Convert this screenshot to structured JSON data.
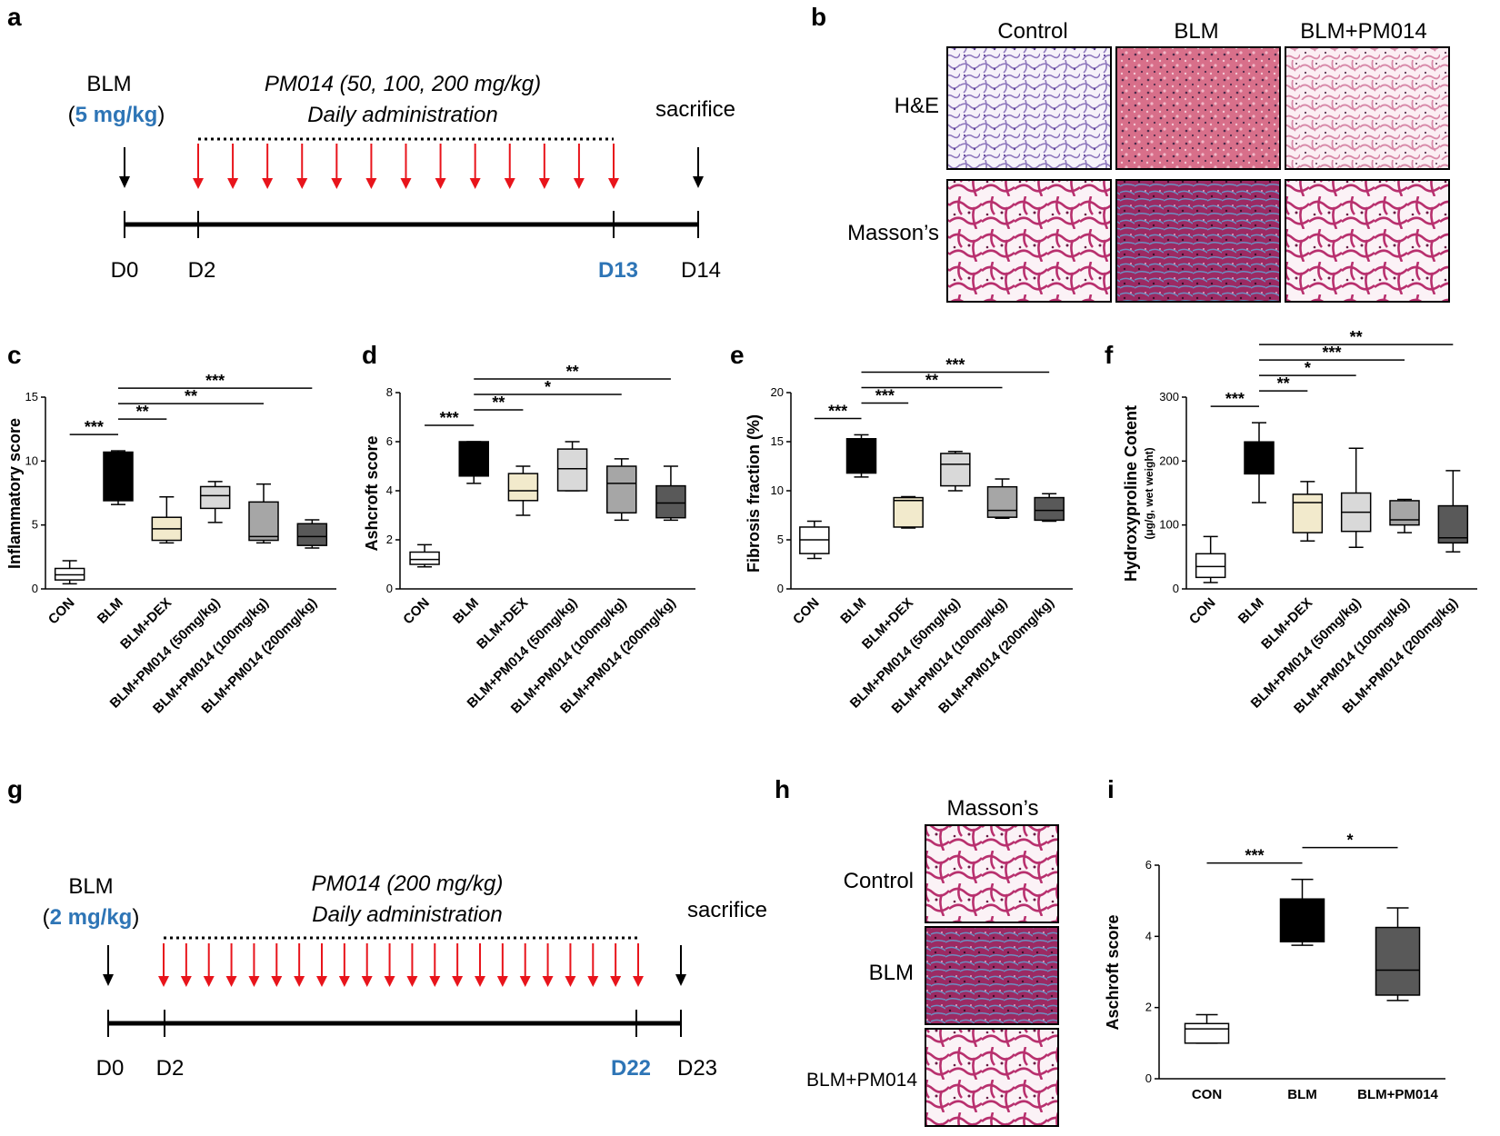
{
  "panels": {
    "a": {
      "letter": "a",
      "drug": "BLM",
      "dose_open": "(",
      "dose": "5 mg/kg",
      "dose_close": ")",
      "treatment": "PM014 (50, 100, 200 mg/kg)",
      "schedule": "Daily administration",
      "endpoint": "sacrifice",
      "days": [
        "D0",
        "D2",
        "D13",
        "D14"
      ]
    },
    "b": {
      "letter": "b",
      "columns": [
        "Control",
        "BLM",
        "BLM+PM014"
      ],
      "rows": [
        "H&E",
        "Masson’s"
      ]
    },
    "g": {
      "letter": "g",
      "drug": "BLM",
      "dose_open": "(",
      "dose": "2 mg/kg",
      "dose_close": ")",
      "treatment": "PM014 (200 mg/kg)",
      "schedule": "Daily administration",
      "endpoint": "sacrifice",
      "days": [
        "D0",
        "D2",
        "D22",
        "D23"
      ]
    },
    "h": {
      "letter": "h",
      "column": "Masson’s",
      "rows": [
        "Control",
        "BLM",
        "BLM+PM014"
      ]
    }
  },
  "colors": {
    "arrow_red": "#e8141b",
    "accent_blue": "#2e75b6",
    "he_control": "#c9b6de",
    "he_blm": "#d86f8a",
    "he_pm": "#e8aec6",
    "masson_tissue": "#b8306e",
    "masson_blue": "#5b8fc0"
  },
  "chart_data": [
    {
      "letter": "c",
      "type": "box",
      "ylabel": "Inflammatory score",
      "ylim": [
        0,
        15
      ],
      "yticks": [
        0,
        5,
        10,
        15
      ],
      "categories": [
        "CON",
        "BLM",
        "BLM+DEX",
        "BLM+PM014 (50mg/kg)",
        "BLM+PM014 (100mg/kg)",
        "BLM+PM014 (200mg/kg)"
      ],
      "boxes": [
        {
          "min": 0.4,
          "q1": 0.7,
          "median": 1.1,
          "q3": 1.6,
          "max": 2.2,
          "fill": "#ffffff"
        },
        {
          "min": 6.6,
          "q1": 6.9,
          "median": 10.5,
          "q3": 10.7,
          "max": 10.8,
          "fill": "#000000"
        },
        {
          "min": 3.6,
          "q1": 3.8,
          "median": 4.7,
          "q3": 5.6,
          "max": 7.2,
          "fill": "#f2eacc"
        },
        {
          "min": 5.2,
          "q1": 6.3,
          "median": 7.3,
          "q3": 8.0,
          "max": 8.4,
          "fill": "#d9d9d9"
        },
        {
          "min": 3.6,
          "q1": 3.8,
          "median": 4.1,
          "q3": 6.8,
          "max": 8.2,
          "fill": "#a6a6a6"
        },
        {
          "min": 3.2,
          "q1": 3.4,
          "median": 4.1,
          "q3": 5.1,
          "max": 5.4,
          "fill": "#595959"
        }
      ],
      "sig": [
        {
          "from": 0,
          "to": 1,
          "label": "***"
        },
        {
          "from": 1,
          "to": 2,
          "label": "**"
        },
        {
          "from": 1,
          "to": 4,
          "label": "**"
        },
        {
          "from": 1,
          "to": 5,
          "label": "***"
        }
      ]
    },
    {
      "letter": "d",
      "type": "box",
      "ylabel": "Ashcroft score",
      "ylim": [
        0,
        8
      ],
      "yticks": [
        0,
        2,
        4,
        6,
        8
      ],
      "categories": [
        "CON",
        "BLM",
        "BLM+DEX",
        "BLM+PM014 (50mg/kg)",
        "BLM+PM014 (100mg/kg)",
        "BLM+PM014 (200mg/kg)"
      ],
      "boxes": [
        {
          "min": 0.9,
          "q1": 1.0,
          "median": 1.2,
          "q3": 1.5,
          "max": 1.8,
          "fill": "#ffffff"
        },
        {
          "min": 4.3,
          "q1": 4.6,
          "median": 4.7,
          "q3": 6.0,
          "max": 6.0,
          "fill": "#000000"
        },
        {
          "min": 3.0,
          "q1": 3.6,
          "median": 4.0,
          "q3": 4.7,
          "max": 5.0,
          "fill": "#f2eacc"
        },
        {
          "min": 4.0,
          "q1": 4.0,
          "median": 4.9,
          "q3": 5.7,
          "max": 6.0,
          "fill": "#d9d9d9"
        },
        {
          "min": 2.8,
          "q1": 3.1,
          "median": 4.3,
          "q3": 5.0,
          "max": 5.3,
          "fill": "#a6a6a6"
        },
        {
          "min": 2.8,
          "q1": 2.9,
          "median": 3.5,
          "q3": 4.2,
          "max": 5.0,
          "fill": "#595959"
        }
      ],
      "sig": [
        {
          "from": 0,
          "to": 1,
          "label": "***"
        },
        {
          "from": 1,
          "to": 2,
          "label": "**"
        },
        {
          "from": 1,
          "to": 4,
          "label": "*"
        },
        {
          "from": 1,
          "to": 5,
          "label": "**"
        }
      ]
    },
    {
      "letter": "e",
      "type": "box",
      "ylabel": "Fibrosis fraction (%)",
      "ylim": [
        0,
        20
      ],
      "yticks": [
        0,
        5,
        10,
        15,
        20
      ],
      "categories": [
        "CON",
        "BLM",
        "BLM+DEX",
        "BLM+PM014 (50mg/kg)",
        "BLM+PM014 (100mg/kg)",
        "BLM+PM014 (200mg/kg)"
      ],
      "boxes": [
        {
          "min": 3.1,
          "q1": 3.6,
          "median": 5.0,
          "q3": 6.3,
          "max": 6.9,
          "fill": "#ffffff"
        },
        {
          "min": 11.4,
          "q1": 11.8,
          "median": 15.0,
          "q3": 15.3,
          "max": 15.7,
          "fill": "#000000"
        },
        {
          "min": 6.2,
          "q1": 6.3,
          "median": 9.0,
          "q3": 9.3,
          "max": 9.4,
          "fill": "#f2eacc"
        },
        {
          "min": 10.0,
          "q1": 10.5,
          "median": 12.7,
          "q3": 13.8,
          "max": 14.0,
          "fill": "#d9d9d9"
        },
        {
          "min": 7.2,
          "q1": 7.3,
          "median": 8.0,
          "q3": 10.4,
          "max": 11.2,
          "fill": "#a6a6a6"
        },
        {
          "min": 6.9,
          "q1": 7.0,
          "median": 8.0,
          "q3": 9.3,
          "max": 9.7,
          "fill": "#595959"
        }
      ],
      "sig": [
        {
          "from": 0,
          "to": 1,
          "label": "***"
        },
        {
          "from": 1,
          "to": 2,
          "label": "***"
        },
        {
          "from": 1,
          "to": 4,
          "label": "**"
        },
        {
          "from": 1,
          "to": 5,
          "label": "***"
        }
      ]
    },
    {
      "letter": "f",
      "type": "box",
      "ylabel": "Hydroxyproline Cotent",
      "ylabel_sub": "(μg/g, wet weight)",
      "ylim": [
        0,
        300
      ],
      "yticks": [
        0,
        100,
        200,
        300
      ],
      "categories": [
        "CON",
        "BLM",
        "BLM+DEX",
        "BLM+PM014 (50mg/kg)",
        "BLM+PM014 (100mg/kg)",
        "BLM+PM014 (200mg/kg)"
      ],
      "boxes": [
        {
          "min": 10,
          "q1": 18,
          "median": 35,
          "q3": 55,
          "max": 82,
          "fill": "#ffffff"
        },
        {
          "min": 135,
          "q1": 180,
          "median": 205,
          "q3": 230,
          "max": 260,
          "fill": "#000000"
        },
        {
          "min": 75,
          "q1": 88,
          "median": 135,
          "q3": 148,
          "max": 168,
          "fill": "#f2eacc"
        },
        {
          "min": 65,
          "q1": 90,
          "median": 120,
          "q3": 150,
          "max": 220,
          "fill": "#d9d9d9"
        },
        {
          "min": 88,
          "q1": 100,
          "median": 108,
          "q3": 138,
          "max": 140,
          "fill": "#a6a6a6"
        },
        {
          "min": 58,
          "q1": 72,
          "median": 80,
          "q3": 130,
          "max": 185,
          "fill": "#595959"
        }
      ],
      "sig": [
        {
          "from": 0,
          "to": 1,
          "label": "***"
        },
        {
          "from": 1,
          "to": 2,
          "label": "**"
        },
        {
          "from": 1,
          "to": 3,
          "label": "*"
        },
        {
          "from": 1,
          "to": 4,
          "label": "***"
        },
        {
          "from": 1,
          "to": 5,
          "label": "**"
        }
      ]
    },
    {
      "letter": "i",
      "type": "box",
      "ylabel": "Aschroft score",
      "ylim": [
        0,
        6
      ],
      "yticks": [
        0,
        2,
        4,
        6
      ],
      "categories": [
        "CON",
        "BLM",
        "BLM+PM014"
      ],
      "boxes": [
        {
          "min": 1.0,
          "q1": 1.0,
          "median": 1.4,
          "q3": 1.55,
          "max": 1.8,
          "fill": "#ffffff"
        },
        {
          "min": 3.75,
          "q1": 3.85,
          "median": 4.0,
          "q3": 5.05,
          "max": 5.6,
          "fill": "#000000"
        },
        {
          "min": 2.2,
          "q1": 2.35,
          "median": 3.05,
          "q3": 4.25,
          "max": 4.8,
          "fill": "#595959"
        }
      ],
      "sig": [
        {
          "from": 0,
          "to": 1,
          "label": "***"
        },
        {
          "from": 1,
          "to": 2,
          "label": "*"
        }
      ]
    }
  ]
}
